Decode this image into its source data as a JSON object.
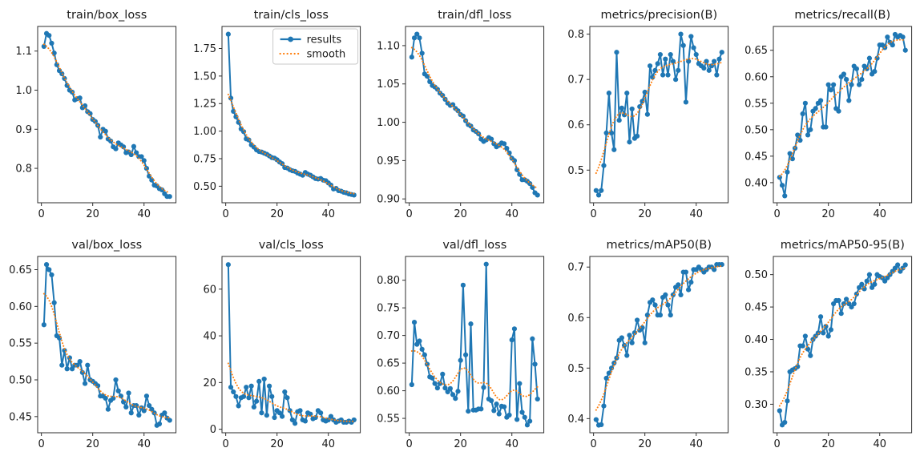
{
  "figure": {
    "description": "YOLO training results grid of line charts",
    "rows": 2,
    "cols": 5,
    "background": "#ffffff"
  },
  "colors": {
    "results": "#1f77b4",
    "smooth": "#ff7f0e",
    "spine": "#2e2e2e",
    "text": "#1a1a1a",
    "legend_border": "#c9c9c9"
  },
  "epochs": {
    "start": 1,
    "end": 50
  },
  "legend": {
    "entries": [
      "results",
      "smooth"
    ],
    "location": "upper-right of train/cls_loss subplot"
  },
  "chart_data": [
    {
      "type": "line",
      "title": "train/box_loss",
      "xticks": [
        "0",
        "20",
        "40"
      ],
      "xlim": [
        -1.45,
        52.45
      ],
      "yticks": [
        "0.8",
        "0.9",
        "1.0",
        "1.1"
      ],
      "ylim": [
        0.712,
        1.163
      ],
      "series": [
        {
          "name": "results",
          "values": [
            1.112,
            1.145,
            1.14,
            1.12,
            1.095,
            1.065,
            1.05,
            1.042,
            1.03,
            1.012,
            1.0,
            0.995,
            0.975,
            0.978,
            0.98,
            0.955,
            0.96,
            0.945,
            0.94,
            0.925,
            0.92,
            0.91,
            0.88,
            0.9,
            0.895,
            0.875,
            0.87,
            0.855,
            0.85,
            0.865,
            0.86,
            0.855,
            0.84,
            0.842,
            0.835,
            0.856,
            0.84,
            0.83,
            0.83,
            0.82,
            0.8,
            0.78,
            0.77,
            0.757,
            0.755,
            0.748,
            0.745,
            0.735,
            0.728,
            0.728
          ]
        }
      ],
      "smooth": {
        "name": "smooth",
        "style": "dotted",
        "derived_from": "results",
        "gaussian_sigma": 3
      }
    },
    {
      "type": "line",
      "title": "train/cls_loss",
      "xticks": [
        "0",
        "20",
        "40"
      ],
      "xlim": [
        -1.45,
        52.45
      ],
      "yticks": [
        "0.50",
        "0.75",
        "1.00",
        "1.25",
        "1.50",
        "1.75"
      ],
      "ylim": [
        0.35,
        1.95
      ],
      "legend": [
        "results",
        "smooth"
      ],
      "series": [
        {
          "name": "results",
          "values": [
            1.88,
            1.3,
            1.18,
            1.13,
            1.08,
            1.02,
            0.995,
            0.93,
            0.92,
            0.875,
            0.855,
            0.83,
            0.815,
            0.81,
            0.8,
            0.79,
            0.775,
            0.76,
            0.755,
            0.74,
            0.72,
            0.705,
            0.67,
            0.665,
            0.65,
            0.64,
            0.635,
            0.62,
            0.61,
            0.6,
            0.625,
            0.61,
            0.6,
            0.585,
            0.57,
            0.565,
            0.57,
            0.555,
            0.55,
            0.53,
            0.51,
            0.475,
            0.48,
            0.46,
            0.455,
            0.445,
            0.44,
            0.43,
            0.425,
            0.42
          ]
        }
      ],
      "smooth": {
        "name": "smooth",
        "style": "dotted",
        "derived_from": "results",
        "gaussian_sigma": 3
      }
    },
    {
      "type": "line",
      "title": "train/dfl_loss",
      "xticks": [
        "0",
        "20",
        "40"
      ],
      "xlim": [
        -1.45,
        52.45
      ],
      "yticks": [
        "0.90",
        "0.95",
        "1.00",
        "1.05",
        "1.10"
      ],
      "ylim": [
        0.895,
        1.125
      ],
      "series": [
        {
          "name": "results",
          "values": [
            1.085,
            1.11,
            1.115,
            1.11,
            1.09,
            1.063,
            1.06,
            1.053,
            1.048,
            1.046,
            1.043,
            1.038,
            1.035,
            1.03,
            1.025,
            1.022,
            1.023,
            1.018,
            1.015,
            1.01,
            1.008,
            1.002,
            0.997,
            0.995,
            0.99,
            0.988,
            0.985,
            0.978,
            0.975,
            0.977,
            0.98,
            0.978,
            0.972,
            0.968,
            0.97,
            0.973,
            0.972,
            0.966,
            0.96,
            0.953,
            0.95,
            0.938,
            0.932,
            0.925,
            0.925,
            0.923,
            0.92,
            0.915,
            0.908,
            0.905
          ]
        }
      ],
      "smooth": {
        "name": "smooth",
        "style": "dotted",
        "derived_from": "results",
        "gaussian_sigma": 3
      }
    },
    {
      "type": "line",
      "title": "metrics/precision(B)",
      "xticks": [
        "0",
        "20",
        "40"
      ],
      "xlim": [
        -1.45,
        52.45
      ],
      "yticks": [
        "0.5",
        "0.6",
        "0.7",
        "0.8"
      ],
      "ylim": [
        0.428,
        0.817
      ],
      "series": [
        {
          "name": "results",
          "values": [
            0.455,
            0.445,
            0.455,
            0.51,
            0.582,
            0.67,
            0.582,
            0.545,
            0.76,
            0.61,
            0.637,
            0.622,
            0.67,
            0.562,
            0.635,
            0.57,
            0.575,
            0.64,
            0.652,
            0.672,
            0.623,
            0.73,
            0.705,
            0.72,
            0.735,
            0.755,
            0.71,
            0.745,
            0.71,
            0.755,
            0.74,
            0.7,
            0.72,
            0.8,
            0.775,
            0.65,
            0.74,
            0.795,
            0.77,
            0.755,
            0.735,
            0.73,
            0.725,
            0.74,
            0.72,
            0.73,
            0.74,
            0.71,
            0.745,
            0.76
          ]
        }
      ],
      "smooth": {
        "name": "smooth",
        "style": "dotted",
        "derived_from": "results",
        "gaussian_sigma": 3
      }
    },
    {
      "type": "line",
      "title": "metrics/recall(B)",
      "xticks": [
        "0",
        "20",
        "40"
      ],
      "xlim": [
        -1.45,
        52.45
      ],
      "yticks": [
        "0.40",
        "0.45",
        "0.50",
        "0.55",
        "0.60",
        "0.65"
      ],
      "ylim": [
        0.362,
        0.695
      ],
      "series": [
        {
          "name": "results",
          "values": [
            0.41,
            0.395,
            0.375,
            0.42,
            0.455,
            0.445,
            0.465,
            0.49,
            0.48,
            0.53,
            0.55,
            0.49,
            0.5,
            0.535,
            0.54,
            0.55,
            0.555,
            0.505,
            0.505,
            0.585,
            0.575,
            0.585,
            0.54,
            0.535,
            0.6,
            0.605,
            0.595,
            0.555,
            0.585,
            0.62,
            0.615,
            0.585,
            0.595,
            0.62,
            0.615,
            0.635,
            0.605,
            0.61,
            0.635,
            0.66,
            0.66,
            0.655,
            0.675,
            0.665,
            0.66,
            0.68,
            0.675,
            0.678,
            0.675,
            0.65
          ]
        }
      ],
      "smooth": {
        "name": "smooth",
        "style": "dotted",
        "derived_from": "results",
        "gaussian_sigma": 3
      }
    },
    {
      "type": "line",
      "title": "val/box_loss",
      "xticks": [
        "0",
        "20",
        "40"
      ],
      "xlim": [
        -1.45,
        52.45
      ],
      "yticks": [
        "0.45",
        "0.50",
        "0.55",
        "0.60",
        "0.65"
      ],
      "ylim": [
        0.428,
        0.668
      ],
      "series": [
        {
          "name": "results",
          "values": [
            0.575,
            0.657,
            0.65,
            0.643,
            0.605,
            0.56,
            0.557,
            0.52,
            0.54,
            0.515,
            0.53,
            0.515,
            0.52,
            0.52,
            0.525,
            0.51,
            0.495,
            0.52,
            0.5,
            0.498,
            0.495,
            0.492,
            0.478,
            0.478,
            0.475,
            0.46,
            0.472,
            0.475,
            0.5,
            0.485,
            0.478,
            0.47,
            0.463,
            0.482,
            0.455,
            0.465,
            0.465,
            0.452,
            0.462,
            0.458,
            0.478,
            0.465,
            0.46,
            0.455,
            0.438,
            0.44,
            0.452,
            0.455,
            0.448,
            0.445
          ]
        }
      ],
      "smooth": {
        "name": "smooth",
        "style": "dotted",
        "derived_from": "results",
        "gaussian_sigma": 3
      }
    },
    {
      "type": "line",
      "title": "val/cls_loss",
      "xticks": [
        "0",
        "20",
        "40"
      ],
      "xlim": [
        -1.45,
        52.45
      ],
      "yticks": [
        "0",
        "20",
        "40",
        "60"
      ],
      "ylim": [
        -1.5,
        74
      ],
      "series": [
        {
          "name": "results",
          "values": [
            70.5,
            18,
            16,
            14,
            10,
            13.5,
            14,
            18,
            13.5,
            18.5,
            9.5,
            12,
            20.5,
            7,
            21.5,
            6,
            18.5,
            14,
            5,
            8,
            7,
            5.5,
            16,
            13.5,
            8,
            4,
            2.5,
            7.5,
            8,
            4,
            3.5,
            7,
            6.5,
            4.5,
            5,
            8,
            7,
            4,
            3.5,
            4,
            5.5,
            4,
            3,
            3.5,
            4,
            3,
            3,
            3.5,
            3,
            4
          ]
        }
      ],
      "smooth": {
        "name": "smooth",
        "style": "dotted",
        "derived_from": "results",
        "gaussian_sigma": 3
      }
    },
    {
      "type": "line",
      "title": "val/dfl_loss",
      "xticks": [
        "0",
        "20",
        "40"
      ],
      "xlim": [
        -1.45,
        52.45
      ],
      "yticks": [
        "0.55",
        "0.60",
        "0.65",
        "0.70",
        "0.75",
        "0.80"
      ],
      "ylim": [
        0.524,
        0.843
      ],
      "series": [
        {
          "name": "results",
          "values": [
            0.611,
            0.724,
            0.684,
            0.69,
            0.675,
            0.665,
            0.648,
            0.625,
            0.623,
            0.613,
            0.605,
            0.613,
            0.63,
            0.605,
            0.598,
            0.604,
            0.593,
            0.586,
            0.599,
            0.655,
            0.791,
            0.665,
            0.563,
            0.721,
            0.565,
            0.565,
            0.567,
            0.567,
            0.606,
            0.829,
            0.585,
            0.582,
            0.564,
            0.576,
            0.558,
            0.572,
            0.571,
            0.552,
            0.556,
            0.692,
            0.712,
            0.548,
            0.613,
            0.561,
            0.552,
            0.538,
            0.545,
            0.694,
            0.648,
            0.585
          ]
        }
      ],
      "smooth": {
        "name": "smooth",
        "style": "dotted",
        "derived_from": "results",
        "gaussian_sigma": 3
      }
    },
    {
      "type": "line",
      "title": "metrics/mAP50(B)",
      "xticks": [
        "0",
        "20",
        "40"
      ],
      "xlim": [
        -1.45,
        52.45
      ],
      "yticks": [
        "0.4",
        "0.5",
        "0.6",
        "0.7"
      ],
      "ylim": [
        0.372,
        0.721
      ],
      "series": [
        {
          "name": "results",
          "values": [
            0.398,
            0.387,
            0.388,
            0.425,
            0.48,
            0.49,
            0.5,
            0.51,
            0.52,
            0.555,
            0.56,
            0.545,
            0.525,
            0.565,
            0.55,
            0.57,
            0.595,
            0.575,
            0.58,
            0.55,
            0.605,
            0.63,
            0.635,
            0.625,
            0.605,
            0.605,
            0.64,
            0.645,
            0.625,
            0.605,
            0.645,
            0.66,
            0.665,
            0.645,
            0.69,
            0.69,
            0.655,
            0.67,
            0.695,
            0.695,
            0.7,
            0.695,
            0.69,
            0.695,
            0.7,
            0.7,
            0.695,
            0.705,
            0.705,
            0.705
          ]
        }
      ],
      "smooth": {
        "name": "smooth",
        "style": "dotted",
        "derived_from": "results",
        "gaussian_sigma": 3
      }
    },
    {
      "type": "line",
      "title": "metrics/mAP50-95(B)",
      "xticks": [
        "0",
        "20",
        "40"
      ],
      "xlim": [
        -1.45,
        52.45
      ],
      "yticks": [
        "0.30",
        "0.35",
        "0.40",
        "0.45",
        "0.50"
      ],
      "ylim": [
        0.256,
        0.528
      ],
      "series": [
        {
          "name": "results",
          "values": [
            0.29,
            0.268,
            0.272,
            0.305,
            0.35,
            0.353,
            0.355,
            0.358,
            0.39,
            0.39,
            0.405,
            0.385,
            0.375,
            0.4,
            0.405,
            0.41,
            0.435,
            0.41,
            0.42,
            0.405,
            0.415,
            0.455,
            0.46,
            0.46,
            0.44,
            0.455,
            0.462,
            0.455,
            0.45,
            0.455,
            0.47,
            0.48,
            0.485,
            0.478,
            0.49,
            0.5,
            0.48,
            0.485,
            0.5,
            0.497,
            0.495,
            0.49,
            0.495,
            0.5,
            0.505,
            0.51,
            0.515,
            0.505,
            0.51,
            0.515
          ]
        }
      ],
      "smooth": {
        "name": "smooth",
        "style": "dotted",
        "derived_from": "results",
        "gaussian_sigma": 3
      }
    }
  ]
}
